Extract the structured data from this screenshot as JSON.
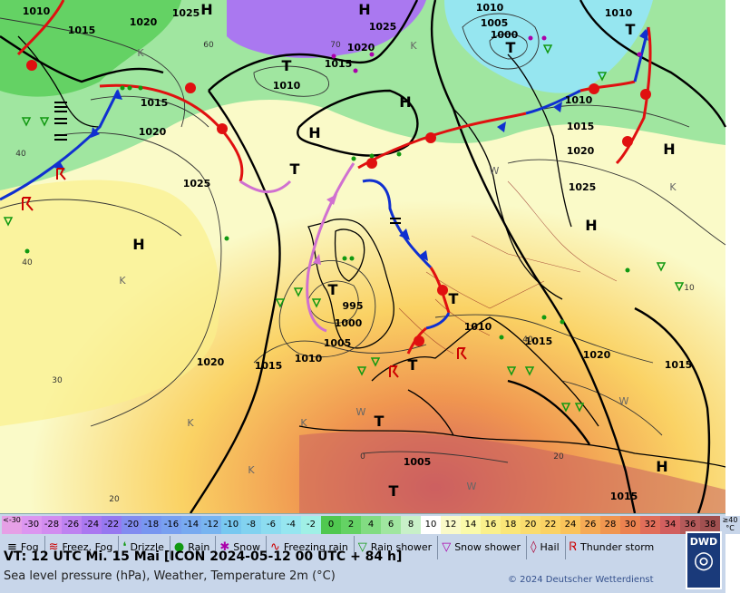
{
  "header": {
    "valid_time": "VT: 12 UTC Mi.  15 Mai [ICON 2024-05-12  00 UTC + 84 h]",
    "subtitle": "Sea level pressure (hPa), Weather, Temperature 2m (°C)",
    "copyright": "© 2024 Deutscher Wetterdienst",
    "logo_text": "DWD"
  },
  "temperature_scale": [
    {
      "label": "<-30",
      "color": "#e6a0e6"
    },
    {
      "label": "-30",
      "color": "#dc96f0"
    },
    {
      "label": "-28",
      "color": "#d28cf0"
    },
    {
      "label": "-26",
      "color": "#be82f0"
    },
    {
      "label": "-24",
      "color": "#aa78f0"
    },
    {
      "label": "-22",
      "color": "#9678f0"
    },
    {
      "label": "-20",
      "color": "#828cf0"
    },
    {
      "label": "-18",
      "color": "#7896f0"
    },
    {
      "label": "-16",
      "color": "#78a0f0"
    },
    {
      "label": "-14",
      "color": "#78aaf0"
    },
    {
      "label": "-12",
      "color": "#78b4f0"
    },
    {
      "label": "-10",
      "color": "#78c8f0"
    },
    {
      "label": "-8",
      "color": "#82d2f0"
    },
    {
      "label": "-6",
      "color": "#8cdcf0"
    },
    {
      "label": "-4",
      "color": "#96e6f0"
    },
    {
      "label": "-2",
      "color": "#a0f0e6"
    },
    {
      "label": "0",
      "color": "#50c850"
    },
    {
      "label": "2",
      "color": "#64d264"
    },
    {
      "label": "4",
      "color": "#82dc82"
    },
    {
      "label": "6",
      "color": "#a0e6a0"
    },
    {
      "label": "8",
      "color": "#c8f0c8"
    },
    {
      "label": "10",
      "color": "#ffffff"
    },
    {
      "label": "12",
      "color": "#fafac8"
    },
    {
      "label": "14",
      "color": "#fafaaa"
    },
    {
      "label": "16",
      "color": "#faf08c"
    },
    {
      "label": "18",
      "color": "#fae678"
    },
    {
      "label": "20",
      "color": "#fadc6e"
    },
    {
      "label": "22",
      "color": "#fad264"
    },
    {
      "label": "24",
      "color": "#fac35a"
    },
    {
      "label": "26",
      "color": "#f5aa55"
    },
    {
      "label": "28",
      "color": "#f09650"
    },
    {
      "label": "30",
      "color": "#eb8250"
    },
    {
      "label": "32",
      "color": "#e16e5a"
    },
    {
      "label": "34",
      "color": "#d25f5f"
    },
    {
      "label": "36",
      "color": "#b45a5a"
    },
    {
      "label": "38",
      "color": "#a05050"
    },
    {
      "label": "≥40 °C",
      "color": "#c8d6ea"
    }
  ],
  "weather_legend": [
    {
      "label": "Fog",
      "icon": "fog-icon",
      "symbol": "≡",
      "color": "#000000"
    },
    {
      "label": "Freez. Fog",
      "icon": "freezing-fog-icon",
      "symbol": "≋",
      "color": "#cc0000"
    },
    {
      "label": "Drizzle",
      "icon": "drizzle-icon",
      "symbol": "❛",
      "color": "#119911"
    },
    {
      "label": "Rain",
      "icon": "rain-icon",
      "symbol": "●",
      "color": "#119911"
    },
    {
      "label": "Snow",
      "icon": "snow-icon",
      "symbol": "✱",
      "color": "#aa00aa"
    },
    {
      "label": "Freezing rain",
      "icon": "freezing-rain-icon",
      "symbol": "∿",
      "color": "#cc0000"
    },
    {
      "label": "Rain shower",
      "icon": "rain-shower-icon",
      "symbol": "▽",
      "color": "#119911"
    },
    {
      "label": "Snow shower",
      "icon": "snow-shower-icon",
      "symbol": "▽",
      "color": "#aa00aa"
    },
    {
      "label": "Hail",
      "icon": "hail-icon",
      "symbol": "◊",
      "color": "#aa0033"
    },
    {
      "label": "Thunder storm",
      "icon": "thunderstorm-icon",
      "symbol": "Ꮢ",
      "color": "#cc0000"
    }
  ],
  "map": {
    "pressure_labels": [
      {
        "text": "1010"
      },
      {
        "text": "1015"
      },
      {
        "text": "1020"
      },
      {
        "text": "1025"
      },
      {
        "text": "1010"
      },
      {
        "text": "1020"
      },
      {
        "text": "1025"
      },
      {
        "text": "1015"
      },
      {
        "text": "1010"
      },
      {
        "text": "1005"
      },
      {
        "text": "1000"
      },
      {
        "text": "1010"
      },
      {
        "text": "1015"
      },
      {
        "text": "1010"
      },
      {
        "text": "1015"
      },
      {
        "text": "1020"
      },
      {
        "text": "1025"
      },
      {
        "text": "1020"
      },
      {
        "text": "1025"
      },
      {
        "text": "995"
      },
      {
        "text": "1000"
      },
      {
        "text": "1005"
      },
      {
        "text": "1010"
      },
      {
        "text": "1015"
      },
      {
        "text": "1020"
      },
      {
        "text": "1010"
      },
      {
        "text": "1015"
      },
      {
        "text": "1020"
      },
      {
        "text": "1015"
      },
      {
        "text": "1005"
      },
      {
        "text": "1015"
      }
    ],
    "high_label": "H",
    "low_label": "T",
    "grid_labels": [
      {
        "text": "40"
      },
      {
        "text": "40"
      },
      {
        "text": "30"
      },
      {
        "text": "20"
      },
      {
        "text": "60"
      },
      {
        "text": "70"
      },
      {
        "text": "0"
      },
      {
        "text": "20"
      },
      {
        "text": "40"
      },
      {
        "text": "10"
      }
    ],
    "contour_labels": [
      {
        "text": "K"
      },
      {
        "text": "K"
      },
      {
        "text": "W"
      },
      {
        "text": "K"
      },
      {
        "text": "K"
      },
      {
        "text": "K"
      },
      {
        "text": "W"
      },
      {
        "text": "K"
      },
      {
        "text": "K"
      },
      {
        "text": "W"
      },
      {
        "text": "W"
      }
    ]
  }
}
